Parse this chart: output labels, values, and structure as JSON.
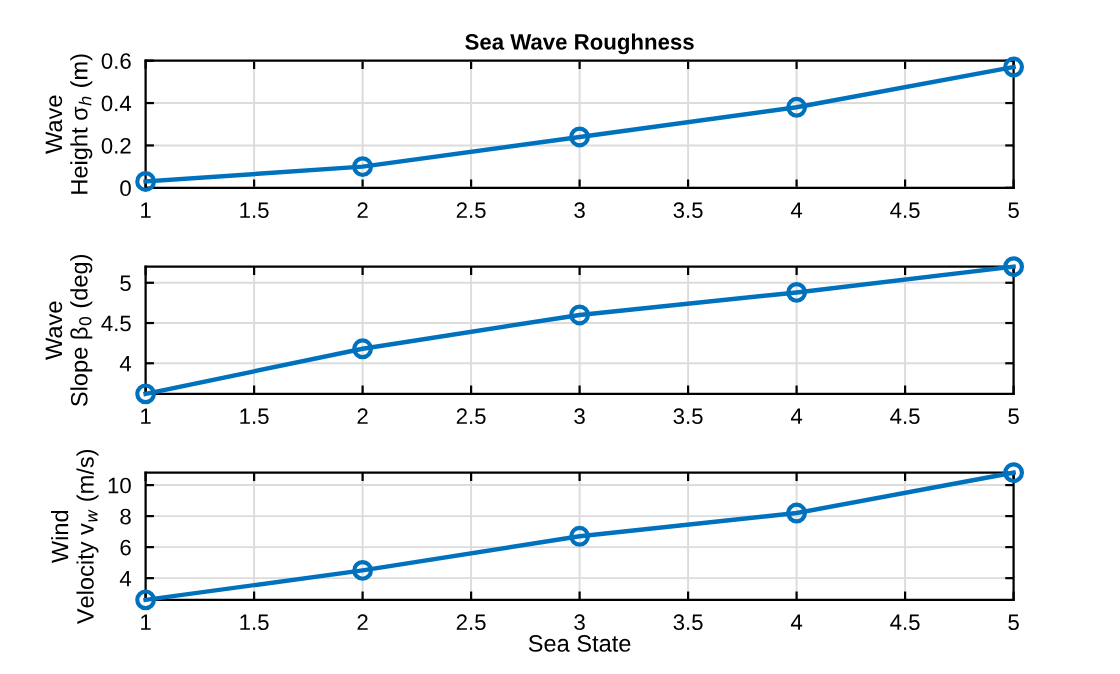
{
  "chart_data": [
    {
      "type": "line",
      "title": "Sea Wave Roughness",
      "ylabel": "Wave\nHeight σ$_{h}$ (m)",
      "x": [
        1,
        2,
        3,
        4,
        5
      ],
      "series": [
        {
          "color": "#0072bd",
          "values": [
            0.03,
            0.1,
            0.24,
            0.38,
            0.57
          ]
        }
      ],
      "xlim": [
        1,
        5
      ],
      "xticks": [
        1,
        1.5,
        2,
        2.5,
        3,
        3.5,
        4,
        4.5,
        5
      ],
      "ylim": [
        0,
        0.6
      ],
      "yticks": [
        0,
        0.2,
        0.4,
        0.6
      ],
      "grid": true,
      "marker": "circle",
      "line_style": "solid"
    },
    {
      "type": "line",
      "ylabel": "Wave\nSlope β$_{0}$ (deg)",
      "x": [
        1,
        2,
        3,
        4,
        5
      ],
      "series": [
        {
          "color": "#0072bd",
          "values": [
            3.62,
            4.18,
            4.6,
            4.88,
            5.2
          ]
        }
      ],
      "xlim": [
        1,
        5
      ],
      "xticks": [
        1,
        1.5,
        2,
        2.5,
        3,
        3.5,
        4,
        4.5,
        5
      ],
      "ylim": [
        3.62,
        5.2
      ],
      "yticks": [
        4,
        4.5,
        5
      ],
      "grid": true,
      "marker": "circle",
      "line_style": "solid"
    },
    {
      "type": "line",
      "xlabel": "Sea State",
      "ylabel": "Wind\nVelocity v$_{w}$ (m/s)",
      "x": [
        1,
        2,
        3,
        4,
        5
      ],
      "series": [
        {
          "color": "#0072bd",
          "values": [
            2.6,
            4.5,
            6.7,
            8.2,
            10.8
          ]
        }
      ],
      "xlim": [
        1,
        5
      ],
      "xticks": [
        1,
        1.5,
        2,
        2.5,
        3,
        3.5,
        4,
        4.5,
        5
      ],
      "ylim": [
        2.6,
        10.8
      ],
      "yticks": [
        4,
        6,
        8,
        10
      ],
      "grid": true,
      "marker": "circle",
      "line_style": "solid"
    }
  ]
}
